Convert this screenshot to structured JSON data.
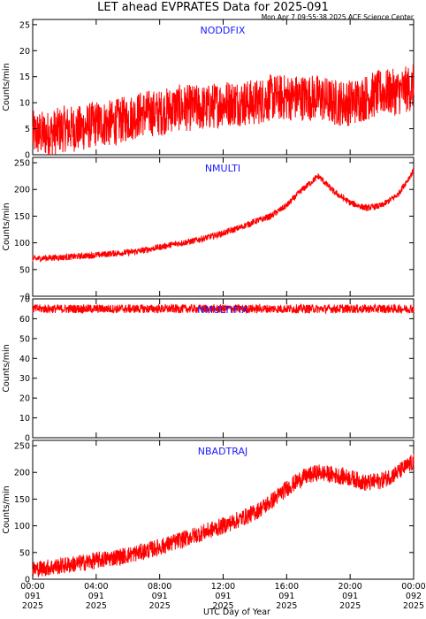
{
  "header": {
    "title": "LET ahead EVPRATES Data for 2025-091",
    "timestamp": "Mon Apr  7 09:55:38 2025 ACE Science Center"
  },
  "colors": {
    "series": "#ff0000",
    "panel_label": "#1a1aff",
    "axes": "#000000",
    "background": "#ffffff"
  },
  "chart_data": [
    {
      "type": "line",
      "panel_label": "NODDFIX",
      "ylabel": "Counts/min",
      "ylim": [
        0,
        26
      ],
      "yticks": [
        0,
        5,
        10,
        15,
        20,
        25
      ],
      "xlim_hours": [
        0,
        24
      ],
      "grid": false,
      "series": [
        {
          "values": [
            4,
            4,
            5,
            5,
            6,
            6,
            7,
            8,
            8,
            9,
            9,
            9,
            10,
            10,
            10,
            11,
            11,
            11,
            11,
            10,
            10,
            11,
            12,
            12,
            13
          ],
          "spread": 4.5,
          "clip": [
            0,
            25
          ]
        }
      ]
    },
    {
      "type": "line",
      "panel_label": "NMULTI",
      "ylabel": "Counts/min",
      "ylim": [
        0,
        260
      ],
      "yticks": [
        0,
        50,
        100,
        150,
        200,
        250
      ],
      "xlim_hours": [
        0,
        24
      ],
      "grid": false,
      "series": [
        {
          "values": [
            70,
            72,
            73,
            75,
            77,
            80,
            82,
            86,
            92,
            98,
            103,
            110,
            118,
            128,
            140,
            150,
            170,
            200,
            225,
            195,
            175,
            165,
            170,
            190,
            235
          ],
          "spread": 6,
          "clip": [
            0,
            255
          ]
        }
      ]
    },
    {
      "type": "line",
      "panel_label": "NMULTIFIX",
      "ylabel": "Counts/min",
      "ylim": [
        0,
        70
      ],
      "yticks": [
        0,
        10,
        20,
        30,
        40,
        50,
        60,
        70
      ],
      "xlim_hours": [
        0,
        24
      ],
      "grid": false,
      "series": [
        {
          "values": [
            65,
            65,
            65,
            65,
            65,
            65,
            65,
            65,
            65,
            65,
            65,
            65,
            65,
            65,
            65,
            65,
            65,
            65,
            65,
            65,
            65,
            65,
            65,
            65,
            65
          ],
          "spread": 2.2,
          "clip": [
            55,
            69
          ]
        }
      ]
    },
    {
      "type": "line",
      "panel_label": "NBADTRAJ",
      "ylabel": "Counts/min",
      "ylim": [
        0,
        260
      ],
      "yticks": [
        0,
        50,
        100,
        150,
        200,
        250
      ],
      "xlim_hours": [
        0,
        24
      ],
      "grid": false,
      "series": [
        {
          "values": [
            18,
            22,
            26,
            30,
            35,
            40,
            45,
            52,
            60,
            70,
            80,
            90,
            100,
            112,
            125,
            145,
            170,
            190,
            200,
            195,
            190,
            180,
            185,
            200,
            220
          ],
          "spread": 16,
          "clip": [
            5,
            255
          ]
        }
      ]
    }
  ],
  "x_axis": {
    "label": "UTC Day of Year",
    "ticks": [
      {
        "hour": 0,
        "lines": [
          "00:00",
          "091",
          "2025"
        ]
      },
      {
        "hour": 4,
        "lines": [
          "04:00",
          "091",
          "2025"
        ]
      },
      {
        "hour": 8,
        "lines": [
          "08:00",
          "091",
          "2025"
        ]
      },
      {
        "hour": 12,
        "lines": [
          "12:00",
          "091",
          "2025"
        ]
      },
      {
        "hour": 16,
        "lines": [
          "16:00",
          "091",
          "2025"
        ]
      },
      {
        "hour": 20,
        "lines": [
          "20:00",
          "091",
          "2025"
        ]
      },
      {
        "hour": 24,
        "lines": [
          "00:00",
          "092",
          "2025"
        ]
      }
    ]
  }
}
